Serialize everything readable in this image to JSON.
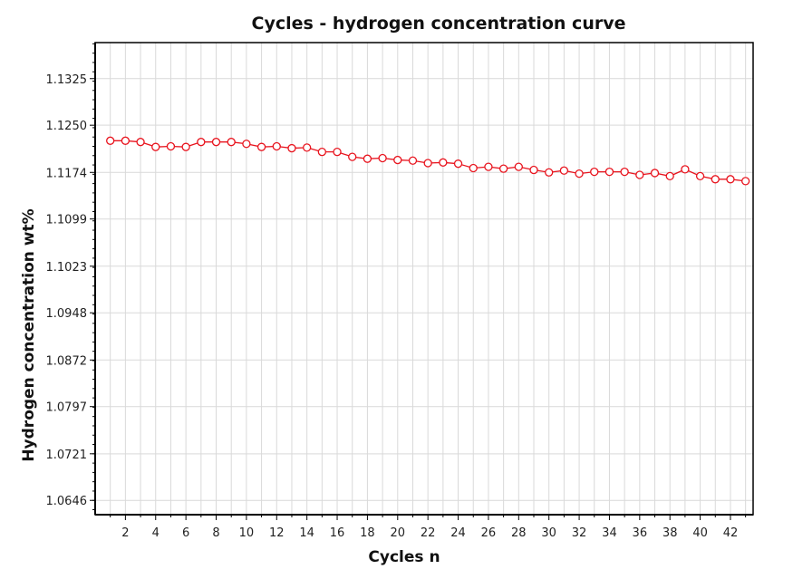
{
  "chart_data": {
    "type": "line",
    "title": "Cycles -  hydrogen concentration curve",
    "xlabel": "Cycles n",
    "ylabel": "Hydrogen concentration  wt%",
    "xlim": [
      0,
      43.5
    ],
    "ylim": [
      1.0623,
      1.1383
    ],
    "xticks": [
      2,
      4,
      6,
      8,
      10,
      12,
      14,
      16,
      18,
      20,
      22,
      24,
      26,
      28,
      30,
      32,
      34,
      36,
      38,
      40,
      42
    ],
    "yticks": [
      1.0646,
      1.0721,
      1.0797,
      1.0872,
      1.0948,
      1.1023,
      1.1099,
      1.1174,
      1.125,
      1.1325
    ],
    "ytick_labels": [
      "1.0646",
      "1.0721",
      "1.0797",
      "1.0872",
      "1.0948",
      "1.1023",
      "1.1099",
      "1.1174",
      "1.1250",
      "1.1325"
    ],
    "grid": true,
    "line_color": "#e8141e",
    "x": [
      1,
      2,
      3,
      4,
      5,
      6,
      7,
      8,
      9,
      10,
      11,
      12,
      13,
      14,
      15,
      16,
      17,
      18,
      19,
      20,
      21,
      22,
      23,
      24,
      25,
      26,
      27,
      28,
      29,
      30,
      31,
      32,
      33,
      34,
      35,
      36,
      37,
      38,
      39,
      40,
      41,
      42,
      43
    ],
    "values": [
      1.1225,
      1.1225,
      1.1223,
      1.1215,
      1.1216,
      1.1215,
      1.1223,
      1.1223,
      1.1223,
      1.122,
      1.1215,
      1.1216,
      1.1213,
      1.1214,
      1.1207,
      1.1207,
      1.1199,
      1.1196,
      1.1197,
      1.1194,
      1.1193,
      1.1189,
      1.119,
      1.1188,
      1.1181,
      1.1183,
      1.118,
      1.1183,
      1.1178,
      1.1174,
      1.1177,
      1.1172,
      1.1175,
      1.1175,
      1.1175,
      1.117,
      1.1173,
      1.1168,
      1.1179,
      1.1168,
      1.1163,
      1.1163,
      1.116
    ]
  }
}
